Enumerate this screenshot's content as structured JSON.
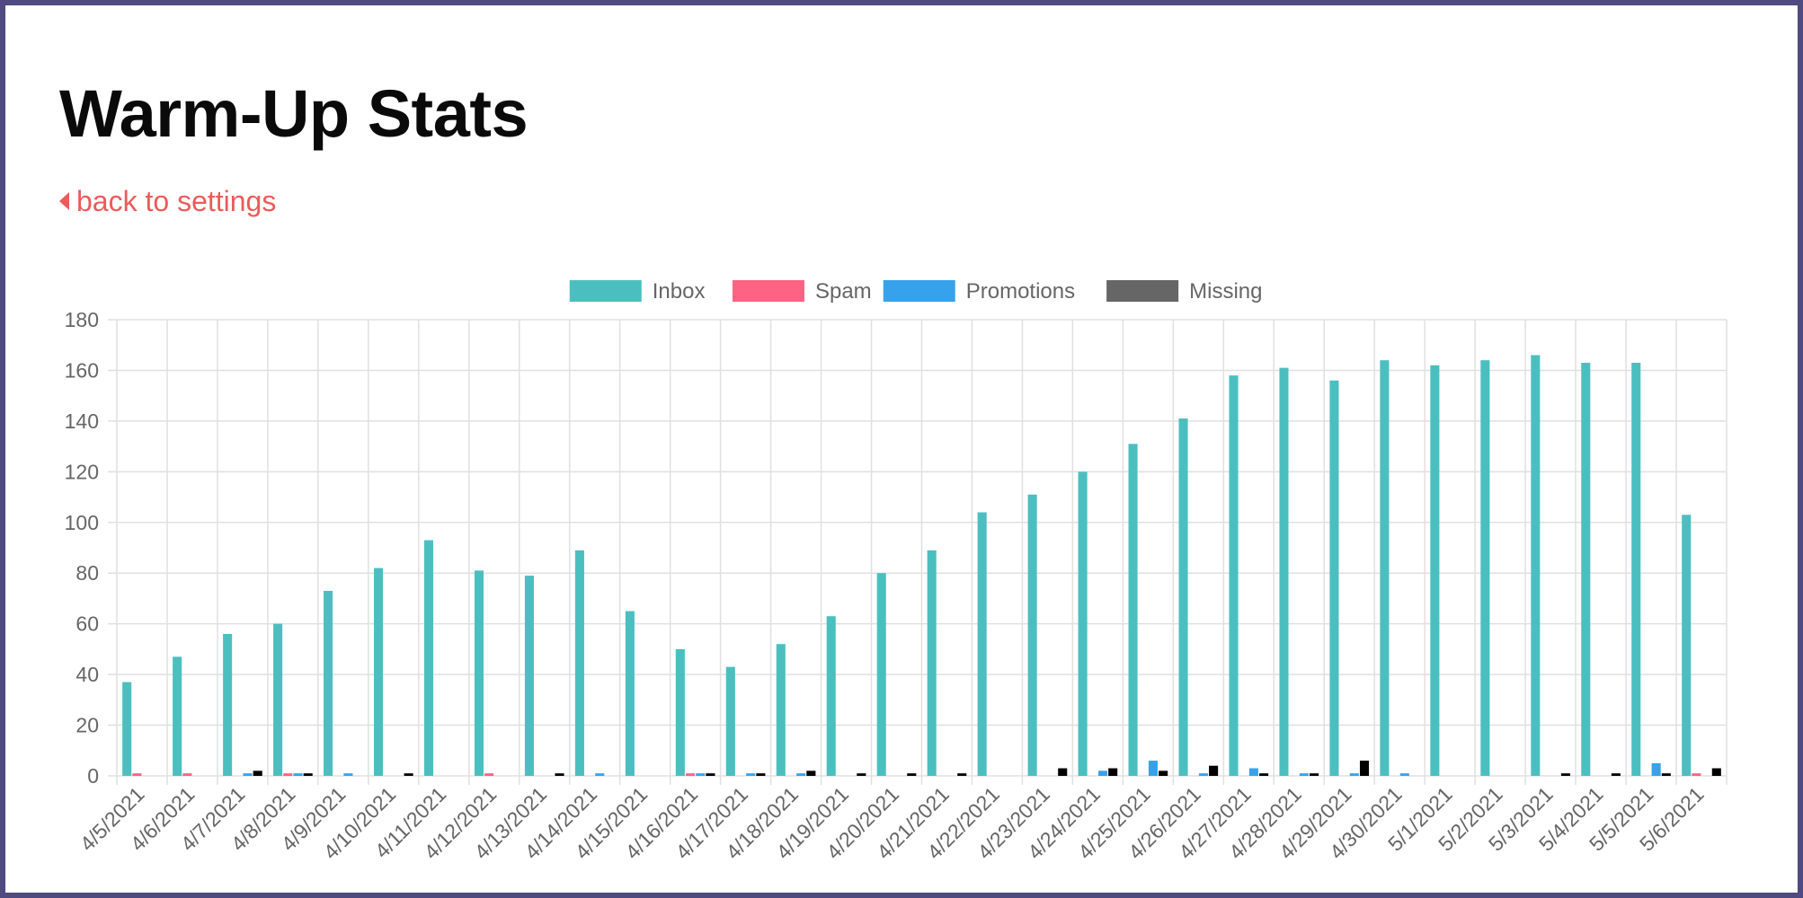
{
  "page": {
    "title": "Warm-Up Stats",
    "back_link_label": "back to settings"
  },
  "colors": {
    "frame_border": "#4f4a7f",
    "link": "#ec5b5b",
    "inbox": "#4bbfc0",
    "spam": "#ff6384",
    "promotions": "#36a2eb",
    "missing": "#000000",
    "missing_legend": "#666666",
    "grid": "#e0e0e0",
    "tick_text": "#666666"
  },
  "chart_data": {
    "type": "bar",
    "title": "",
    "xlabel": "",
    "ylabel": "",
    "ylim": [
      0,
      180
    ],
    "yticks": [
      0,
      20,
      40,
      60,
      80,
      100,
      120,
      140,
      160,
      180
    ],
    "grid": true,
    "legend_position": "top-center",
    "categories": [
      "4/5/2021",
      "4/6/2021",
      "4/7/2021",
      "4/8/2021",
      "4/9/2021",
      "4/10/2021",
      "4/11/2021",
      "4/12/2021",
      "4/13/2021",
      "4/14/2021",
      "4/15/2021",
      "4/16/2021",
      "4/17/2021",
      "4/18/2021",
      "4/19/2021",
      "4/20/2021",
      "4/21/2021",
      "4/22/2021",
      "4/23/2021",
      "4/24/2021",
      "4/25/2021",
      "4/26/2021",
      "4/27/2021",
      "4/28/2021",
      "4/29/2021",
      "4/30/2021",
      "5/1/2021",
      "5/2/2021",
      "5/3/2021",
      "5/4/2021",
      "5/5/2021",
      "5/6/2021"
    ],
    "series": [
      {
        "name": "Inbox",
        "color": "#4bbfc0",
        "values": [
          37,
          47,
          56,
          60,
          73,
          82,
          93,
          81,
          79,
          89,
          65,
          50,
          43,
          52,
          63,
          80,
          89,
          104,
          111,
          120,
          131,
          141,
          158,
          161,
          156,
          164,
          162,
          164,
          166,
          163,
          163,
          103
        ]
      },
      {
        "name": "Spam",
        "color": "#ff6384",
        "values": [
          1,
          1,
          0,
          1,
          0,
          0,
          0,
          1,
          0,
          0,
          0,
          1,
          0,
          0,
          0,
          0,
          0,
          0,
          0,
          0,
          0,
          0,
          0,
          0,
          0,
          0,
          0,
          0,
          0,
          0,
          0,
          1
        ]
      },
      {
        "name": "Promotions",
        "color": "#36a2eb",
        "values": [
          0,
          0,
          1,
          1,
          1,
          0,
          0,
          0,
          0,
          1,
          0,
          1,
          1,
          1,
          0,
          0,
          0,
          0,
          0,
          2,
          6,
          1,
          3,
          1,
          1,
          1,
          0,
          0,
          0,
          0,
          5,
          0
        ]
      },
      {
        "name": "Missing",
        "color": "#000000",
        "legend_color": "#666666",
        "values": [
          0,
          0,
          2,
          1,
          0,
          1,
          0,
          0,
          1,
          0,
          0,
          1,
          1,
          2,
          1,
          1,
          1,
          0,
          3,
          3,
          2,
          4,
          1,
          1,
          6,
          0,
          0,
          0,
          1,
          1,
          1,
          3
        ]
      }
    ]
  }
}
